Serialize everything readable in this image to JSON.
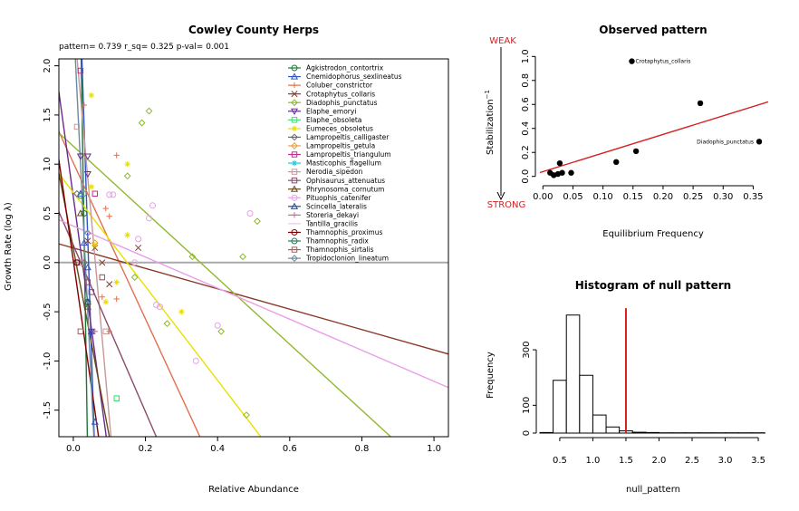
{
  "chart_data": [
    {
      "type": "scatter",
      "title": "Cowley County Herps",
      "subtitle": "pattern= 0.739 r_sq= 0.325 p-val= 0.001",
      "xlabel": "Relative Abundance",
      "ylabel": "Growth Rate (log  λ)",
      "xlim": [
        -0.04,
        1.04
      ],
      "ylim": [
        -1.77,
        2.07
      ],
      "x_ticks": [
        "0.0",
        "0.2",
        "0.4",
        "0.6",
        "0.8",
        "1.0"
      ],
      "y_ticks": [
        "-1.5",
        "-1.0",
        "-0.5",
        "0.0",
        "0.5",
        "1.0",
        "1.5",
        "2.0"
      ],
      "reference_line_y": 0,
      "legend_position": "top-right",
      "series": [
        {
          "name": "Agkistrodon_contortrix",
          "color": "#1b7837",
          "marker": "circle",
          "line": [
            [
              0.02,
              2.5
            ],
            [
              0.04,
              -2.0
            ]
          ],
          "points": [
            [
              0.02,
              0.68
            ],
            [
              0.03,
              0.5
            ],
            [
              0.04,
              -0.4
            ]
          ]
        },
        {
          "name": "Cnemidophorus_sexlineatus",
          "color": "#3155c9",
          "marker": "triangle",
          "line": [
            [
              0.02,
              2.5
            ],
            [
              0.06,
              -2.0
            ]
          ],
          "points": [
            [
              0.02,
              0.7
            ],
            [
              0.03,
              0.2
            ],
            [
              0.04,
              -0.05
            ],
            [
              0.05,
              -0.7
            ],
            [
              0.06,
              -1.62
            ]
          ]
        },
        {
          "name": "Coluber_constrictor",
          "color": "#e07050",
          "marker": "plus",
          "line": [
            [
              -0.2,
              2.6
            ],
            [
              0.38,
              -2.0
            ]
          ],
          "points": [
            [
              0.03,
              1.6
            ],
            [
              0.12,
              1.09
            ],
            [
              0.09,
              0.55
            ],
            [
              0.1,
              0.47
            ],
            [
              0.08,
              -0.35
            ],
            [
              0.1,
              -0.7
            ],
            [
              0.12,
              -0.37
            ]
          ]
        },
        {
          "name": "Crotaphytus_collaris",
          "color": "#8b3a2a",
          "marker": "x",
          "line": [
            [
              -0.05,
              0.2
            ],
            [
              1.04,
              -0.93
            ]
          ],
          "points": [
            [
              0.04,
              0.22
            ],
            [
              0.08,
              0.0
            ],
            [
              0.1,
              -0.22
            ],
            [
              0.18,
              0.15
            ],
            [
              0.06,
              0.15
            ]
          ]
        },
        {
          "name": "Diadophis_punctatus",
          "color": "#8fb82c",
          "marker": "diamond",
          "line": [
            [
              -0.05,
              1.35
            ],
            [
              0.88,
              -1.77
            ]
          ],
          "points": [
            [
              0.19,
              1.42
            ],
            [
              0.21,
              1.54
            ],
            [
              0.15,
              0.88
            ],
            [
              0.33,
              0.06
            ],
            [
              0.47,
              0.06
            ],
            [
              0.51,
              0.42
            ],
            [
              0.48,
              -1.55
            ],
            [
              0.41,
              -0.7
            ],
            [
              0.26,
              -0.62
            ],
            [
              0.17,
              -0.15
            ]
          ]
        },
        {
          "name": "Elaphe_emoryi",
          "color": "#6a2a8a",
          "marker": "triangle-down",
          "line": [
            [
              -0.05,
              2.0
            ],
            [
              0.1,
              -2.0
            ]
          ],
          "points": [
            [
              0.02,
              1.08
            ],
            [
              0.04,
              1.08
            ],
            [
              0.04,
              0.9
            ],
            [
              0.05,
              -0.7
            ]
          ]
        },
        {
          "name": "Elaphe_obsoleta",
          "color": "#3be07a",
          "marker": "square",
          "line": [],
          "points": [
            [
              0.12,
              -1.38
            ],
            [
              0.12,
              -1.38
            ]
          ]
        },
        {
          "name": "Eumeces_obsoletus",
          "color": "#e8e000",
          "marker": "star",
          "line": [
            [
              -0.05,
              0.95
            ],
            [
              0.52,
              -1.77
            ]
          ],
          "points": [
            [
              0.05,
              1.7
            ],
            [
              0.15,
              1.0
            ],
            [
              0.05,
              0.77
            ],
            [
              0.06,
              0.18
            ],
            [
              0.15,
              0.28
            ],
            [
              0.12,
              -0.2
            ],
            [
              0.3,
              -0.5
            ],
            [
              0.09,
              -0.4
            ]
          ]
        },
        {
          "name": "Lampropeltis_calligaster",
          "color": "#6b6b6b",
          "marker": "diamond",
          "line": [],
          "points": [
            [
              0.01,
              0.7
            ],
            [
              0.03,
              0.0
            ]
          ]
        },
        {
          "name": "Lampropeltis_getula",
          "color": "#e8a040",
          "marker": "diamond",
          "line": [],
          "points": [
            [
              0.06,
              0.2
            ]
          ]
        },
        {
          "name": "Lampropeltis_triangulum",
          "color": "#c0308a",
          "marker": "square",
          "line": [],
          "points": [
            [
              0.02,
              1.95
            ],
            [
              0.06,
              0.7
            ]
          ]
        },
        {
          "name": "Masticophis_flagellum",
          "color": "#20c8d8",
          "marker": "star",
          "line": [],
          "points": []
        },
        {
          "name": "Nerodia_sipedon",
          "color": "#c89898",
          "marker": "square",
          "line": [
            [
              0.0,
              2.5
            ],
            [
              0.11,
              -2.0
            ]
          ],
          "points": [
            [
              0.01,
              1.38
            ],
            [
              0.02,
              0.0
            ],
            [
              0.08,
              -0.15
            ],
            [
              0.09,
              -0.7
            ]
          ]
        },
        {
          "name": "Ophisaurus_attenuatus",
          "color": "#8a4a6a",
          "marker": "square",
          "line": [
            [
              -0.05,
              0.6
            ],
            [
              0.23,
              -1.77
            ]
          ],
          "points": [
            [
              0.01,
              0.0
            ],
            [
              0.04,
              -0.2
            ],
            [
              0.05,
              -0.3
            ]
          ]
        },
        {
          "name": "Phrynosoma_cornutum",
          "color": "#6a4a1a",
          "marker": "triangle",
          "line": [
            [
              -0.05,
              1.1
            ],
            [
              0.1,
              -1.77
            ]
          ],
          "points": [
            [
              0.02,
              0.5
            ],
            [
              0.04,
              -0.45
            ]
          ]
        },
        {
          "name": "Pituophis_catenifer",
          "color": "#e8a0e8",
          "marker": "circle",
          "line": [
            [
              -0.05,
              0.45
            ],
            [
              1.04,
              -1.27
            ]
          ],
          "points": [
            [
              0.1,
              0.69
            ],
            [
              0.11,
              0.69
            ],
            [
              0.22,
              0.58
            ],
            [
              0.21,
              0.45
            ],
            [
              0.18,
              0.24
            ],
            [
              0.49,
              0.5
            ],
            [
              0.34,
              -1.0
            ],
            [
              0.24,
              -0.45
            ],
            [
              0.4,
              -0.64
            ],
            [
              0.23,
              -0.43
            ],
            [
              0.17,
              0.0
            ]
          ]
        },
        {
          "name": "Scincella_lateralis",
          "color": "#2a4a8a",
          "marker": "triangle",
          "line": [],
          "points": [
            [
              0.04,
              -0.4
            ]
          ]
        },
        {
          "name": "Storeria_dekayi",
          "color": "#c07090",
          "marker": "plus",
          "line": [],
          "points": [
            [
              0.06,
              -0.7
            ]
          ]
        },
        {
          "name": "Tantilla_gracilis",
          "color": "#e8c8e8",
          "marker": "line",
          "line": [],
          "points": []
        },
        {
          "name": "Thamnophis_proximus",
          "color": "#800000",
          "marker": "circle",
          "line": [
            [
              -0.05,
              1.3
            ],
            [
              0.07,
              -1.77
            ]
          ],
          "points": [
            [
              0.01,
              0.0
            ]
          ]
        },
        {
          "name": "Thamnophis_radix",
          "color": "#2a7a5a",
          "marker": "circle",
          "line": [],
          "points": []
        },
        {
          "name": "Thamnophis_sirtalis",
          "color": "#a06060",
          "marker": "square",
          "line": [],
          "points": [
            [
              0.02,
              -0.7
            ],
            [
              0.08,
              -0.15
            ]
          ]
        },
        {
          "name": "Tropidoclonion_lineatum",
          "color": "#6a8aa0",
          "marker": "diamond",
          "line": [
            [
              0.0,
              2.5
            ],
            [
              0.06,
              -2.0
            ]
          ],
          "points": [
            [
              0.03,
              0.7
            ],
            [
              0.04,
              0.3
            ]
          ]
        }
      ]
    },
    {
      "type": "scatter",
      "title": "Observed pattern",
      "xlabel": "Equilibrium Frequency",
      "ylabel": "Stabilization",
      "ylabel_superscript": "−1",
      "xlim": [
        -0.005,
        0.375
      ],
      "ylim": [
        -0.04,
        1.04
      ],
      "x_ticks": [
        "0.00",
        "0.05",
        "0.10",
        "0.15",
        "0.20",
        "0.25",
        "0.30",
        "0.35"
      ],
      "y_ticks": [
        "0.0",
        "0.2",
        "0.4",
        "0.6",
        "0.8",
        "1.0"
      ],
      "annotations": {
        "weak": "WEAK",
        "strong": "STRONG"
      },
      "regression": {
        "color": "#d62020",
        "intercept": 0.04,
        "slope": 1.55
      },
      "points": [
        {
          "x": 0.012,
          "y": 0.03,
          "label": ""
        },
        {
          "x": 0.018,
          "y": 0.01,
          "label": ""
        },
        {
          "x": 0.025,
          "y": 0.02,
          "label": ""
        },
        {
          "x": 0.028,
          "y": 0.11,
          "label": ""
        },
        {
          "x": 0.032,
          "y": 0.03,
          "label": ""
        },
        {
          "x": 0.047,
          "y": 0.03,
          "label": ""
        },
        {
          "x": 0.122,
          "y": 0.12,
          "label": ""
        },
        {
          "x": 0.148,
          "y": 0.96,
          "label": "Crotaphytus_collaris"
        },
        {
          "x": 0.155,
          "y": 0.21,
          "label": ""
        },
        {
          "x": 0.262,
          "y": 0.61,
          "label": ""
        },
        {
          "x": 0.36,
          "y": 0.29,
          "label": "Diadophis_punctatus"
        }
      ]
    },
    {
      "type": "bar",
      "title": "Histogram of null pattern",
      "xlabel": "null_pattern",
      "ylabel": "Frequency",
      "xlim": [
        0.2,
        3.65
      ],
      "ylim": [
        0,
        460
      ],
      "x_ticks": [
        "0.5",
        "1.0",
        "1.5",
        "2.0",
        "2.5",
        "3.0",
        "3.5"
      ],
      "y_ticks": [
        "0",
        "100",
        "300"
      ],
      "bin_edges": [
        0.2,
        0.4,
        0.6,
        0.8,
        1.0,
        1.2,
        1.4,
        1.6,
        1.8,
        2.0,
        2.2,
        2.4,
        2.6,
        2.8,
        3.0,
        3.2,
        3.4,
        3.6
      ],
      "counts": [
        2,
        190,
        425,
        208,
        65,
        22,
        8,
        3,
        2,
        1,
        1,
        1,
        1,
        1,
        1,
        1,
        1
      ],
      "observed_line": {
        "x": 1.5,
        "color": "#d62020"
      }
    }
  ]
}
